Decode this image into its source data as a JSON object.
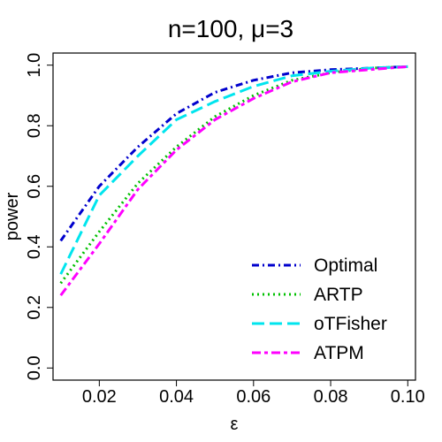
{
  "chart_data": {
    "type": "line",
    "title": "n=100, μ=3",
    "xlabel": "ε",
    "ylabel": "power",
    "xlim": [
      0.008,
      0.102
    ],
    "ylim": [
      -0.04,
      1.04
    ],
    "xticks": [
      0.02,
      0.04,
      0.06,
      0.08,
      0.1
    ],
    "xtick_labels": [
      "0.02",
      "0.04",
      "0.06",
      "0.08",
      "0.10"
    ],
    "yticks": [
      0.0,
      0.2,
      0.4,
      0.6,
      0.8,
      1.0
    ],
    "ytick_labels": [
      "0.0",
      "0.2",
      "0.4",
      "0.6",
      "0.8",
      "1.0"
    ],
    "grid": false,
    "legend_position": "bottom-right",
    "x": [
      0.01,
      0.02,
      0.03,
      0.04,
      0.05,
      0.06,
      0.07,
      0.08,
      0.09,
      0.1
    ],
    "series": [
      {
        "name": "Optimal",
        "color": "#0000CD",
        "dash": "dashdot",
        "values": [
          0.42,
          0.6,
          0.73,
          0.84,
          0.91,
          0.95,
          0.975,
          0.985,
          0.99,
          0.995
        ]
      },
      {
        "name": "ARTP",
        "color": "#00C000",
        "dash": "dotted",
        "values": [
          0.28,
          0.45,
          0.61,
          0.73,
          0.83,
          0.9,
          0.95,
          0.975,
          0.99,
          0.995
        ]
      },
      {
        "name": "oTFisher",
        "color": "#00E5EE",
        "dash": "longdash",
        "values": [
          0.31,
          0.57,
          0.7,
          0.82,
          0.88,
          0.93,
          0.965,
          0.98,
          0.99,
          0.995
        ]
      },
      {
        "name": "ATPM",
        "color": "#FF00FF",
        "dash": "twodash",
        "values": [
          0.24,
          0.41,
          0.59,
          0.72,
          0.82,
          0.89,
          0.945,
          0.975,
          0.985,
          0.995
        ]
      }
    ]
  }
}
